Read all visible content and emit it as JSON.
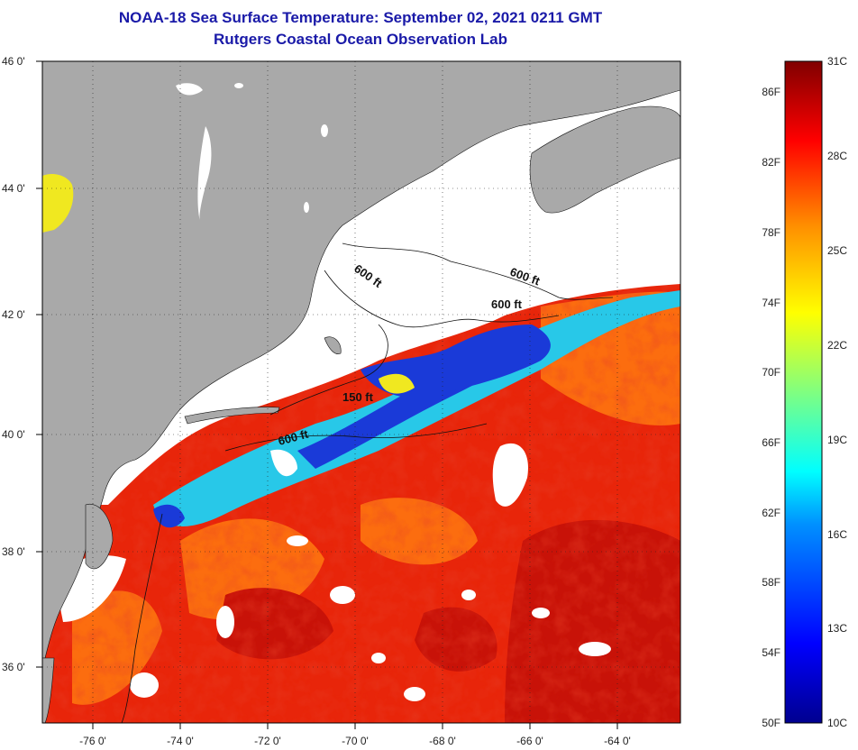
{
  "title": "NOAA-18 Sea Surface Temperature:  September 02, 2021 0211 GMT",
  "subtitle": "Rutgers Coastal Ocean Observation Lab",
  "map": {
    "lat_labels": [
      "46 0'",
      "44 0'",
      "42 0'",
      "40 0'",
      "38 0'",
      "36 0'"
    ],
    "lon_labels": [
      "-76 0'",
      "-74 0'",
      "-72 0'",
      "-70 0'",
      "-68 0'",
      "-66 0'",
      "-64 0'"
    ],
    "contour_labels": [
      "600 ft",
      "600 ft",
      "600 ft",
      "150 ft",
      "600 ft"
    ],
    "colors": {
      "land": "#a9a9a9",
      "cloud": "#ffffff",
      "warm": "#e8250a",
      "hot": "#c81208",
      "orange": "#ff7a10",
      "blue": "#1a3ad8",
      "cyan": "#28c8e8",
      "yellow": "#f0e820"
    }
  },
  "colorbar": {
    "celsius_labels": [
      "31C",
      "28C",
      "25C",
      "22C",
      "19C",
      "16C",
      "13C",
      "10C"
    ],
    "fahrenheit_labels": [
      "86F",
      "82F",
      "78F",
      "74F",
      "70F",
      "66F",
      "62F",
      "58F",
      "54F",
      "50F"
    ]
  }
}
